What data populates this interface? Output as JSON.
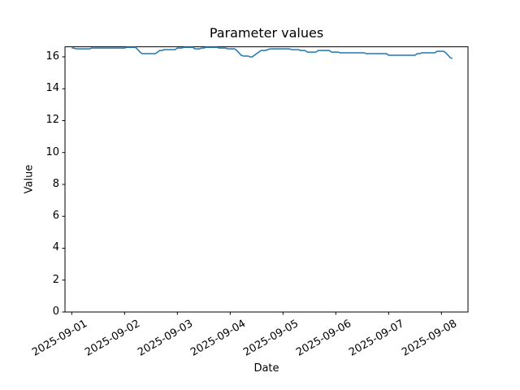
{
  "chart_data": {
    "type": "line",
    "title": "Parameter values",
    "xlabel": "Date",
    "ylabel": "Value",
    "grid": false,
    "legend": "none",
    "background_color": "#ffffff",
    "x_tick_labels": [
      "2025-09-01",
      "2025-09-02",
      "2025-09-03",
      "2025-09-04",
      "2025-09-05",
      "2025-09-06",
      "2025-09-07",
      "2025-09-08"
    ],
    "y_ticks": [
      0,
      2,
      4,
      6,
      8,
      10,
      12,
      14,
      16
    ],
    "ylim": [
      0,
      16.63
    ],
    "xlim_days_from_first_tick": [
      -0.128,
      7.503
    ],
    "series": [
      {
        "name": "parameter-values",
        "color": "#1f77b4",
        "x_start": "2025-09-01T00:00",
        "x_interval_hours": 1,
        "values": [
          16.55,
          16.55,
          16.5,
          16.5,
          16.5,
          16.5,
          16.5,
          16.5,
          16.5,
          16.55,
          16.55,
          16.55,
          16.55,
          16.55,
          16.55,
          16.55,
          16.55,
          16.55,
          16.55,
          16.55,
          16.55,
          16.55,
          16.55,
          16.55,
          16.55,
          16.6,
          16.6,
          16.6,
          16.6,
          16.6,
          16.45,
          16.3,
          16.2,
          16.2,
          16.2,
          16.2,
          16.2,
          16.2,
          16.2,
          16.3,
          16.4,
          16.4,
          16.45,
          16.45,
          16.45,
          16.45,
          16.45,
          16.45,
          16.55,
          16.55,
          16.55,
          16.6,
          16.6,
          16.6,
          16.6,
          16.6,
          16.5,
          16.5,
          16.5,
          16.55,
          16.55,
          16.6,
          16.6,
          16.6,
          16.6,
          16.6,
          16.6,
          16.55,
          16.55,
          16.55,
          16.55,
          16.5,
          16.5,
          16.5,
          16.5,
          16.4,
          16.25,
          16.1,
          16.05,
          16.05,
          16.05,
          16.0,
          16.0,
          16.1,
          16.2,
          16.3,
          16.4,
          16.4,
          16.4,
          16.45,
          16.5,
          16.5,
          16.5,
          16.5,
          16.5,
          16.5,
          16.5,
          16.5,
          16.5,
          16.5,
          16.45,
          16.45,
          16.45,
          16.45,
          16.4,
          16.4,
          16.4,
          16.3,
          16.3,
          16.3,
          16.3,
          16.3,
          16.4,
          16.4,
          16.4,
          16.4,
          16.4,
          16.4,
          16.3,
          16.3,
          16.3,
          16.3,
          16.25,
          16.25,
          16.25,
          16.25,
          16.25,
          16.25,
          16.25,
          16.25,
          16.25,
          16.25,
          16.25,
          16.25,
          16.2,
          16.2,
          16.2,
          16.2,
          16.2,
          16.2,
          16.2,
          16.2,
          16.2,
          16.2,
          16.1,
          16.1,
          16.1,
          16.1,
          16.1,
          16.1,
          16.1,
          16.1,
          16.1,
          16.1,
          16.1,
          16.1,
          16.1,
          16.2,
          16.2,
          16.25,
          16.25,
          16.25,
          16.25,
          16.25,
          16.25,
          16.25,
          16.35,
          16.35,
          16.35,
          16.35,
          16.25,
          16.1,
          15.95,
          15.9
        ]
      }
    ]
  }
}
